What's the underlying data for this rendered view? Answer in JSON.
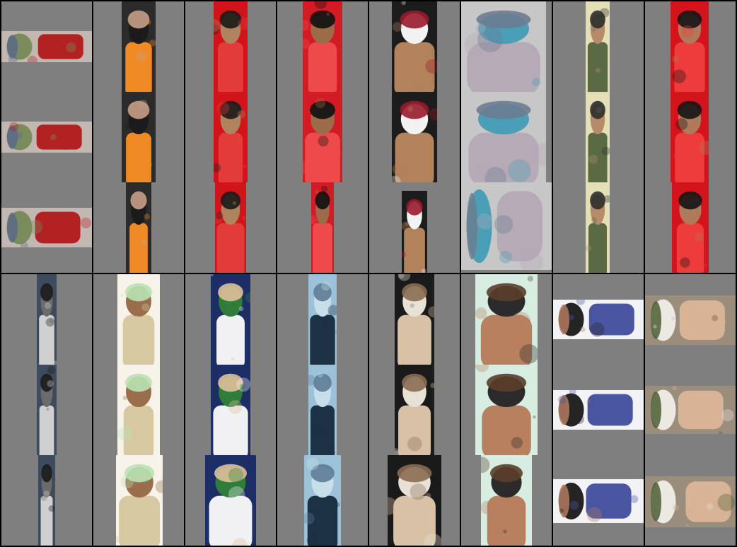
{
  "grid": {
    "rows": 2,
    "columns": 8,
    "crops_per_cell": 3,
    "background_color": "#7f7f7f",
    "separator_color": "#000000"
  },
  "cells": [
    {
      "subject": "person-orange-shirt-rotated",
      "palette": [
        "#c3b7b2",
        "#b22222",
        "#5a6a85",
        "#7a8b5c"
      ]
    },
    {
      "subject": "woman-orange-shirt",
      "palette": [
        "#2b2b2b",
        "#f08a24",
        "#c89f8a",
        "#1b1b1b"
      ]
    },
    {
      "subject": "person-red-background",
      "palette": [
        "#d1141a",
        "#e33a3a",
        "#1a1a1a",
        "#b0835f"
      ]
    },
    {
      "subject": "person-red-background-2",
      "palette": [
        "#d31b25",
        "#ef4a4a",
        "#111111",
        "#9b6b4a"
      ]
    },
    {
      "subject": "smiling-man-portrait",
      "palette": [
        "#1c1c1c",
        "#b2825a",
        "#9a1b2c",
        "#f2f2f2"
      ]
    },
    {
      "subject": "blurry-person-pavement",
      "palette": [
        "#c7c7c7",
        "#b5aab6",
        "#6b7c91",
        "#4a9fb7"
      ]
    },
    {
      "subject": "person-walking",
      "palette": [
        "#e5dfb8",
        "#5a6a45",
        "#2d2d2d",
        "#b58b6b"
      ]
    },
    {
      "subject": "person-red-background-3",
      "palette": [
        "#d4141c",
        "#ee3b3b",
        "#151515",
        "#b07a5a"
      ]
    },
    {
      "subject": "person-dark-jacket-tall",
      "palette": [
        "#3e4b5e",
        "#d0d0d0",
        "#1b1b1b",
        "#6b6b6b"
      ]
    },
    {
      "subject": "blonde-child-rotated",
      "palette": [
        "#f7f3ea",
        "#d6c9a2",
        "#b9e2b1",
        "#9a6d4d"
      ]
    },
    {
      "subject": "woman-sunglasses-navy-shirt",
      "palette": [
        "#1d2d66",
        "#f1f0f2",
        "#e0c19a",
        "#2e7d3a"
      ]
    },
    {
      "subject": "distant-figure-blue-water",
      "palette": [
        "#9bc2d9",
        "#1d3145",
        "#5d7d96",
        "#c8dfe9"
      ]
    },
    {
      "subject": "person-dark-hair-rotated",
      "palette": [
        "#1a1a1a",
        "#d8c1a5",
        "#8a6b52",
        "#e7e1d6"
      ]
    },
    {
      "subject": "smiling-man-close-up",
      "palette": [
        "#d8ede2",
        "#b98060",
        "#5a3e2a",
        "#2b2b2b"
      ]
    },
    {
      "subject": "man-beard-cap-rotated",
      "palette": [
        "#f3f3f7",
        "#4a55a2",
        "#b27a60",
        "#242424"
      ]
    },
    {
      "subject": "woman-long-hair-rotated",
      "palette": [
        "#9b8d7b",
        "#d9b396",
        "#4c5e33",
        "#ece8e2"
      ]
    }
  ]
}
